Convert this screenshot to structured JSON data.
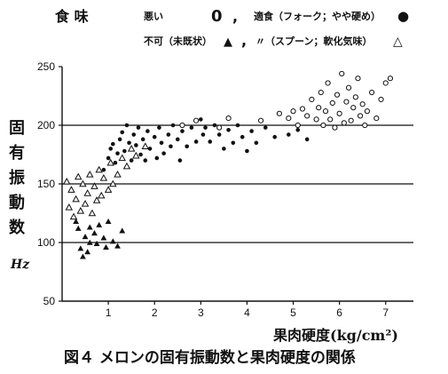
{
  "legend": {
    "header": "食 味",
    "items": [
      {
        "label": "悪い",
        "symbol": "0",
        "sep": ","
      },
      {
        "label": "適食（フォーク；やや硬め）",
        "symbol": "●"
      },
      {
        "label": "不可（未既状）",
        "symbol": "▲",
        "sep": ","
      },
      {
        "label": "〃（スプーン；軟化気味）",
        "symbol": "△"
      }
    ]
  },
  "chart_data": {
    "type": "scatter",
    "title": "図４ メロンの固有振動数と果肉硬度の関係",
    "xlabel": "果肉硬度(kg/cm²)",
    "ylabel": "固有振動数",
    "yunit": "Hz",
    "xlim": [
      0,
      7.6
    ],
    "ylim": [
      50,
      250
    ],
    "xticks": [
      1,
      2,
      3,
      4,
      5,
      6,
      7
    ],
    "yticks": [
      50,
      100,
      150,
      200,
      250
    ],
    "hlines": [
      100,
      150,
      200
    ],
    "series": [
      {
        "name": "不可（未既状）",
        "marker": "filled-triangle",
        "points": [
          [
            0.3,
            118
          ],
          [
            0.35,
            112
          ],
          [
            0.4,
            95
          ],
          [
            0.45,
            88
          ],
          [
            0.5,
            105
          ],
          [
            0.55,
            92
          ],
          [
            0.6,
            100
          ],
          [
            0.6,
            113
          ],
          [
            0.7,
            108
          ],
          [
            0.75,
            99
          ],
          [
            0.8,
            115
          ],
          [
            0.9,
            104
          ],
          [
            0.95,
            96
          ],
          [
            1.0,
            118
          ],
          [
            1.1,
            101
          ],
          [
            1.2,
            97
          ],
          [
            1.3,
            110
          ]
        ]
      },
      {
        "name": "〃（スプーン；軟化気味）",
        "marker": "open-triangle",
        "points": [
          [
            0.1,
            152
          ],
          [
            0.15,
            130
          ],
          [
            0.2,
            145
          ],
          [
            0.25,
            122
          ],
          [
            0.3,
            137
          ],
          [
            0.35,
            156
          ],
          [
            0.4,
            127
          ],
          [
            0.45,
            150
          ],
          [
            0.5,
            133
          ],
          [
            0.55,
            142
          ],
          [
            0.6,
            158
          ],
          [
            0.65,
            125
          ],
          [
            0.7,
            148
          ],
          [
            0.75,
            136
          ],
          [
            0.8,
            162
          ],
          [
            0.85,
            140
          ],
          [
            0.9,
            155
          ],
          [
            1.0,
            145
          ],
          [
            1.05,
            168
          ],
          [
            1.1,
            150
          ],
          [
            1.2,
            158
          ],
          [
            1.3,
            172
          ],
          [
            1.4,
            165
          ],
          [
            1.5,
            180
          ],
          [
            1.6,
            174
          ],
          [
            1.8,
            182
          ]
        ]
      },
      {
        "name": "適食（フォーク；やや硬め）",
        "marker": "filled-circle",
        "points": [
          [
            0.9,
            162
          ],
          [
            1.0,
            172
          ],
          [
            1.05,
            180
          ],
          [
            1.1,
            184
          ],
          [
            1.15,
            168
          ],
          [
            1.2,
            176
          ],
          [
            1.25,
            188
          ],
          [
            1.3,
            194
          ],
          [
            1.35,
            178
          ],
          [
            1.4,
            200
          ],
          [
            1.45,
            185
          ],
          [
            1.5,
            170
          ],
          [
            1.55,
            192
          ],
          [
            1.6,
            183
          ],
          [
            1.65,
            198
          ],
          [
            1.7,
            175
          ],
          [
            1.75,
            188
          ],
          [
            1.8,
            170
          ],
          [
            1.85,
            195
          ],
          [
            1.9,
            180
          ],
          [
            2.0,
            190
          ],
          [
            2.05,
            172
          ],
          [
            2.1,
            198
          ],
          [
            2.15,
            185
          ],
          [
            2.2,
            176
          ],
          [
            2.3,
            192
          ],
          [
            2.35,
            182
          ],
          [
            2.4,
            200
          ],
          [
            2.5,
            188
          ],
          [
            2.55,
            170
          ],
          [
            2.6,
            195
          ],
          [
            2.7,
            182
          ],
          [
            2.8,
            198
          ],
          [
            2.9,
            186
          ],
          [
            3.0,
            205
          ],
          [
            3.05,
            192
          ],
          [
            3.1,
            198
          ],
          [
            3.2,
            186
          ],
          [
            3.3,
            200
          ],
          [
            3.4,
            192
          ],
          [
            3.5,
            180
          ],
          [
            3.6,
            196
          ],
          [
            3.7,
            185
          ],
          [
            3.8,
            200
          ],
          [
            3.9,
            190
          ],
          [
            4.0,
            178
          ],
          [
            4.1,
            195
          ],
          [
            4.2,
            185
          ],
          [
            4.4,
            198
          ],
          [
            4.6,
            190
          ],
          [
            4.9,
            192
          ],
          [
            5.1,
            196
          ],
          [
            5.3,
            188
          ]
        ]
      },
      {
        "name": "悪い",
        "marker": "open-circle",
        "points": [
          [
            2.6,
            200
          ],
          [
            2.9,
            204
          ],
          [
            3.4,
            198
          ],
          [
            3.6,
            206
          ],
          [
            4.3,
            204
          ],
          [
            4.7,
            210
          ],
          [
            4.9,
            206
          ],
          [
            5.0,
            212
          ],
          [
            5.1,
            200
          ],
          [
            5.2,
            214
          ],
          [
            5.3,
            208
          ],
          [
            5.4,
            222
          ],
          [
            5.5,
            205
          ],
          [
            5.55,
            215
          ],
          [
            5.6,
            228
          ],
          [
            5.65,
            200
          ],
          [
            5.7,
            212
          ],
          [
            5.75,
            236
          ],
          [
            5.8,
            205
          ],
          [
            5.85,
            219
          ],
          [
            5.9,
            198
          ],
          [
            5.95,
            226
          ],
          [
            6.0,
            210
          ],
          [
            6.05,
            244
          ],
          [
            6.1,
            202
          ],
          [
            6.15,
            220
          ],
          [
            6.2,
            232
          ],
          [
            6.25,
            204
          ],
          [
            6.3,
            215
          ],
          [
            6.35,
            224
          ],
          [
            6.4,
            240
          ],
          [
            6.45,
            208
          ],
          [
            6.5,
            218
          ],
          [
            6.55,
            200
          ],
          [
            6.6,
            212
          ],
          [
            6.7,
            228
          ],
          [
            6.8,
            206
          ],
          [
            6.9,
            222
          ],
          [
            7.0,
            236
          ],
          [
            7.1,
            240
          ]
        ]
      }
    ]
  }
}
